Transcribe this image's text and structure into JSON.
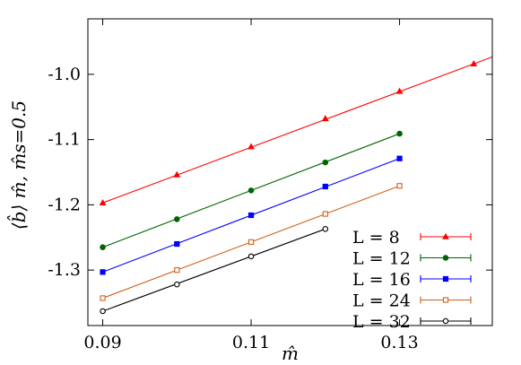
{
  "chart_data": {
    "type": "line",
    "title": "",
    "xlabel": "m̂",
    "ylabel": "⟨b̂⟩ m̂, m̂s=0.5",
    "xlim": [
      0.088,
      0.1425
    ],
    "ylim": [
      -1.385,
      -0.915
    ],
    "x_ticks": [
      0.09,
      0.11,
      0.13
    ],
    "x_tick_labels": [
      "0.09",
      "0.11",
      "0.13"
    ],
    "y_ticks": [
      -1.3,
      -1.2,
      -1.1,
      -1.0
    ],
    "y_tick_labels": [
      "-1.3",
      "-1.2",
      "-1.1",
      "-1.0"
    ],
    "grid": false,
    "legend_position": "lower-right",
    "series": [
      {
        "name": "L = 32",
        "color": "#000000",
        "marker": "circle-open",
        "x": [
          0.09,
          0.1,
          0.11,
          0.12
        ],
        "y": [
          -1.363,
          -1.322,
          -1.279,
          -1.237
        ],
        "fit_x": [
          0.09,
          0.12
        ]
      },
      {
        "name": "L = 24",
        "color": "#d2601a",
        "marker": "square-open",
        "x": [
          0.09,
          0.1,
          0.11,
          0.12,
          0.13
        ],
        "y": [
          -1.343,
          -1.3,
          -1.257,
          -1.214,
          -1.171
        ],
        "fit_x": [
          0.09,
          0.13
        ]
      },
      {
        "name": "L = 16",
        "color": "#0000ff",
        "marker": "square",
        "x": [
          0.09,
          0.1,
          0.11,
          0.12,
          0.13
        ],
        "y": [
          -1.303,
          -1.26,
          -1.216,
          -1.172,
          -1.129
        ],
        "fit_x": [
          0.09,
          0.13
        ]
      },
      {
        "name": "L = 12",
        "color": "#006400",
        "marker": "circle",
        "x": [
          0.09,
          0.1,
          0.11,
          0.12,
          0.13
        ],
        "y": [
          -1.265,
          -1.222,
          -1.178,
          -1.135,
          -1.091
        ],
        "fit_x": [
          0.09,
          0.13
        ]
      },
      {
        "name": "L = 8",
        "color": "#ff0000",
        "marker": "triangle",
        "x": [
          0.09,
          0.1,
          0.11,
          0.12,
          0.13,
          0.14
        ],
        "y": [
          -1.197,
          -1.154,
          -1.111,
          -1.068,
          -1.026,
          -0.984
        ],
        "fit_x": [
          0.09,
          0.1425
        ]
      }
    ]
  }
}
